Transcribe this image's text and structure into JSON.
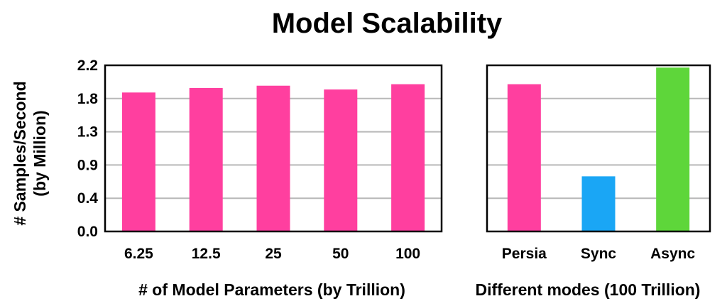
{
  "title": "Model Scalability",
  "ylabel_line1": "# Samples/Second",
  "ylabel_line2": "(by Million)",
  "chart_data": [
    {
      "type": "bar",
      "categories": [
        "6.25",
        "12.5",
        "25",
        "50",
        "100"
      ],
      "values": [
        1.84,
        1.9,
        1.93,
        1.88,
        1.95
      ],
      "xlabel": "# of Model Parameters (by Trillion)",
      "ylabel": "# Samples/Second (by Million)",
      "ylim": [
        0,
        2.2
      ],
      "yticks": [
        "0.0",
        "0.4",
        "0.9",
        "1.3",
        "1.8",
        "2.2"
      ],
      "grid": true,
      "colors": [
        "#ff3f9f",
        "#ff3f9f",
        "#ff3f9f",
        "#ff3f9f",
        "#ff3f9f"
      ]
    },
    {
      "type": "bar",
      "categories": [
        "Persia",
        "Sync",
        "Async"
      ],
      "values": [
        1.95,
        0.73,
        2.17
      ],
      "xlabel": "Different modes (100 Trillion)",
      "ylim": [
        0,
        2.2
      ],
      "grid": true,
      "colors": [
        "#ff3f9f",
        "#1aa6f5",
        "#5ed63a"
      ]
    }
  ]
}
